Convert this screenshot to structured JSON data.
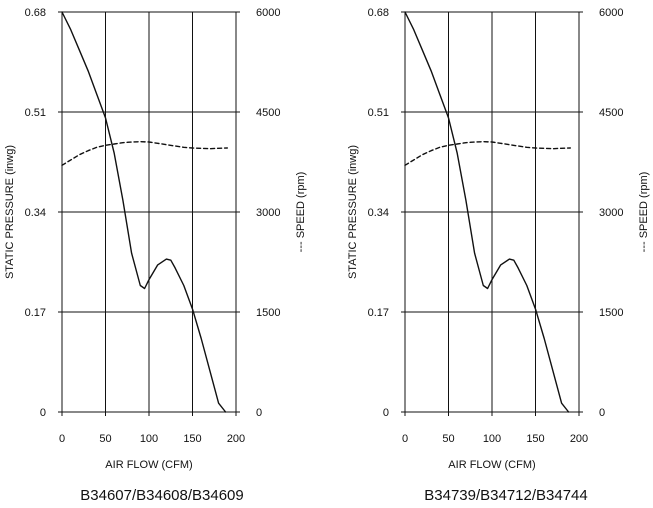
{
  "chart_data": [
    {
      "type": "line",
      "caption": "B34607/B34608/B34609",
      "xlabel": "AIR FLOW (CFM)",
      "ylabel_left": "STATIC PRESSURE (inwg)",
      "ylabel_right": "--- SPEED (rpm)",
      "xlim": [
        0,
        200
      ],
      "x_ticks": [
        "0",
        "50",
        "100",
        "150",
        "200"
      ],
      "ylim_left": [
        0,
        0.68
      ],
      "y_ticks_left": [
        "0",
        "0.17",
        "0.34",
        "0.51",
        "0.68"
      ],
      "ylim_right": [
        0,
        6000
      ],
      "y_ticks_right": [
        "0",
        "1500",
        "3000",
        "4500",
        "6000"
      ],
      "grid": true,
      "series": [
        {
          "axis": "left",
          "style": "solid",
          "x": [
            0,
            10,
            20,
            30,
            40,
            50,
            60,
            70,
            80,
            90,
            95,
            100,
            110,
            120,
            125,
            130,
            140,
            150,
            160,
            170,
            180,
            188
          ],
          "y": [
            0.68,
            0.65,
            0.615,
            0.58,
            0.54,
            0.5,
            0.44,
            0.36,
            0.27,
            0.215,
            0.21,
            0.225,
            0.25,
            0.26,
            0.258,
            0.245,
            0.215,
            0.175,
            0.125,
            0.07,
            0.015,
            0
          ]
        },
        {
          "axis": "right",
          "style": "dashed",
          "x": [
            0,
            10,
            20,
            30,
            40,
            50,
            60,
            70,
            80,
            90,
            100,
            110,
            120,
            130,
            140,
            150,
            160,
            170,
            180,
            190
          ],
          "y": [
            3700,
            3780,
            3860,
            3920,
            3970,
            4000,
            4020,
            4040,
            4050,
            4055,
            4050,
            4030,
            4010,
            3990,
            3970,
            3960,
            3955,
            3950,
            3955,
            3960
          ]
        }
      ]
    },
    {
      "type": "line",
      "caption": "B34739/B34712/B34744",
      "xlabel": "AIR FLOW (CFM)",
      "ylabel_left": "STATIC PRESSURE (inwg)",
      "ylabel_right": "--- SPEED (rpm)",
      "xlim": [
        0,
        200
      ],
      "x_ticks": [
        "0",
        "50",
        "100",
        "150",
        "200"
      ],
      "ylim_left": [
        0,
        0.68
      ],
      "y_ticks_left": [
        "0",
        "0.17",
        "0.34",
        "0.51",
        "0.68"
      ],
      "ylim_right": [
        0,
        6000
      ],
      "y_ticks_right": [
        "0",
        "1500",
        "3000",
        "4500",
        "6000"
      ],
      "grid": true,
      "series": [
        {
          "axis": "left",
          "style": "solid",
          "x": [
            0,
            10,
            20,
            30,
            40,
            50,
            60,
            70,
            80,
            90,
            95,
            100,
            110,
            120,
            125,
            130,
            140,
            150,
            160,
            170,
            180,
            188
          ],
          "y": [
            0.68,
            0.65,
            0.615,
            0.58,
            0.54,
            0.5,
            0.44,
            0.36,
            0.27,
            0.215,
            0.21,
            0.225,
            0.25,
            0.26,
            0.258,
            0.245,
            0.215,
            0.175,
            0.125,
            0.07,
            0.015,
            0
          ]
        },
        {
          "axis": "right",
          "style": "dashed",
          "x": [
            0,
            10,
            20,
            30,
            40,
            50,
            60,
            70,
            80,
            90,
            100,
            110,
            120,
            130,
            140,
            150,
            160,
            170,
            180,
            190
          ],
          "y": [
            3700,
            3780,
            3860,
            3920,
            3970,
            4000,
            4020,
            4040,
            4050,
            4055,
            4050,
            4030,
            4010,
            3990,
            3970,
            3960,
            3955,
            3950,
            3955,
            3960
          ]
        }
      ]
    }
  ],
  "colors": {
    "line": "#111111",
    "grid": "#111111",
    "background": "#ffffff"
  }
}
